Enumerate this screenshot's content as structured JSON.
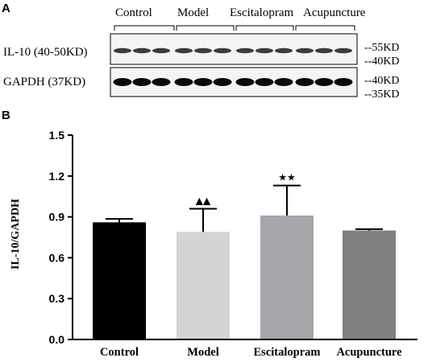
{
  "panel_a": {
    "label": "A",
    "groups": [
      "Control",
      "Model",
      "Escitalopram",
      "Acupuncture"
    ],
    "rows": [
      {
        "label": "IL-10  (40-50KD)",
        "markers": [
          "--55KD",
          "--40KD"
        ]
      },
      {
        "label": "GAPDH (37KD)",
        "markers": [
          "--40KD",
          "--35KD"
        ]
      }
    ]
  },
  "panel_b": {
    "label": "B"
  },
  "chart_data": {
    "type": "bar",
    "title": "",
    "xlabel": "",
    "ylabel": "IL-10/GAPDH",
    "ylim": [
      0,
      1.5
    ],
    "yticks": [
      "0.0",
      "0.3",
      "0.6",
      "0.9",
      "1.2",
      "1.5"
    ],
    "categories": [
      "Control",
      "Model",
      "Escitalopram",
      "Acupuncture"
    ],
    "values": [
      0.86,
      0.79,
      0.91,
      0.8
    ],
    "error": [
      0.025,
      0.17,
      0.22,
      0.01
    ],
    "significance": [
      "",
      "▲▲",
      "★★",
      ""
    ],
    "colors": [
      "#000000",
      "#d4d4d4",
      "#a5a5aa",
      "#808080"
    ],
    "grid": false
  }
}
